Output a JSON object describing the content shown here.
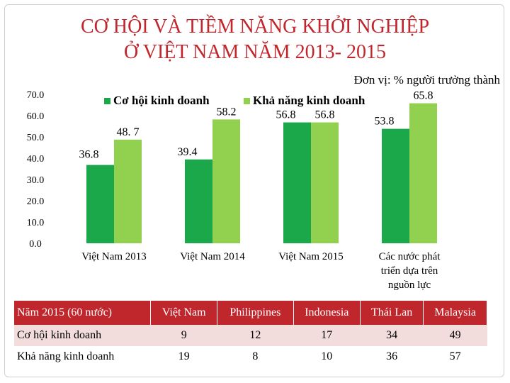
{
  "title": [
    "CƠ HỘI VÀ TIỀM NĂNG KHỞI NGHIỆP",
    "Ở VIỆT NAM NĂM 2013- 2015"
  ],
  "unit": "Đơn vị: % người trưởng thành",
  "chart_data": {
    "type": "bar",
    "categories": [
      "Việt Nam 2013",
      "Việt Nam 2014",
      "Việt Nam 2015",
      "Các nước phát triển dựa trên nguồn lực"
    ],
    "category_lines": [
      [
        "Việt Nam 2013"
      ],
      [
        "Việt Nam 2014"
      ],
      [
        "Việt Nam 2015"
      ],
      [
        "Các nước phát",
        "triển dựa trên",
        "nguồn lực"
      ]
    ],
    "series": [
      {
        "name": "Cơ hội kinh doanh",
        "values": [
          36.8,
          39.4,
          56.8,
          53.8
        ],
        "labels": [
          "36.8",
          "39.4",
          "56.8",
          "53.8"
        ],
        "color": "#1aa84b"
      },
      {
        "name": "Khả năng kinh doanh",
        "values": [
          48.7,
          58.2,
          56.8,
          65.8
        ],
        "labels": [
          "48. 7",
          "58.2",
          "56.8",
          "65.8"
        ],
        "color": "#92d050"
      }
    ],
    "yticks": [
      "0.0",
      "10.0",
      "20.0",
      "30.0",
      "40.0",
      "50.0",
      "60.0",
      "70.0"
    ],
    "ylim": [
      0,
      70
    ],
    "legend_position": "top",
    "grid": false
  },
  "table": {
    "headers": [
      "Năm 2015 (60 nước)",
      "Việt Nam",
      "Philippines",
      "Indonesia",
      "Thái Lan",
      "Malaysia"
    ],
    "rows": [
      [
        "Cơ hội kinh doanh",
        "9",
        "12",
        "17",
        "34",
        "49"
      ],
      [
        "Khả năng kinh doanh",
        "19",
        "8",
        "10",
        "36",
        "57"
      ]
    ]
  }
}
